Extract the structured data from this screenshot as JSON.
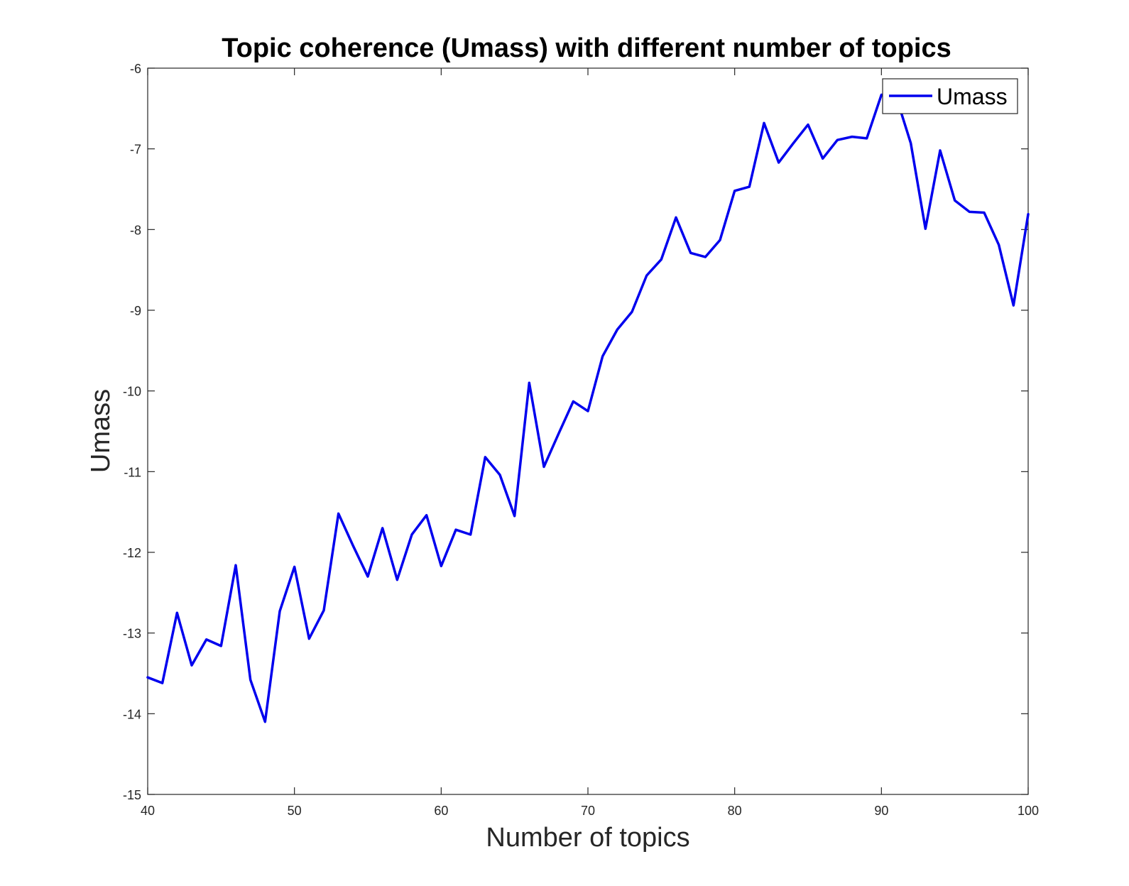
{
  "chart_data": {
    "type": "line",
    "title": "Topic coherence (Umass) with different number of topics",
    "xlabel": "Number of topics",
    "ylabel": "Umass",
    "xlim": [
      40,
      100
    ],
    "ylim": [
      -15,
      -6
    ],
    "xticks": [
      40,
      50,
      60,
      70,
      80,
      90,
      100
    ],
    "yticks": [
      -6,
      -7,
      -8,
      -9,
      -10,
      -11,
      -12,
      -13,
      -14,
      -15
    ],
    "grid": false,
    "legend": {
      "position": "top-right"
    },
    "series": [
      {
        "name": "Umass",
        "color": "#0000ee",
        "x": [
          40,
          41,
          42,
          43,
          44,
          45,
          46,
          47,
          48,
          49,
          50,
          51,
          52,
          53,
          54,
          55,
          56,
          57,
          58,
          59,
          60,
          61,
          62,
          63,
          64,
          65,
          66,
          67,
          68,
          69,
          70,
          71,
          72,
          73,
          74,
          75,
          76,
          77,
          78,
          79,
          80,
          81,
          82,
          83,
          84,
          85,
          86,
          87,
          88,
          89,
          90,
          91,
          92,
          93,
          94,
          95,
          96,
          97,
          98,
          99,
          100
        ],
        "y": [
          -13.55,
          -13.62,
          -12.75,
          -13.4,
          -13.08,
          -13.16,
          -12.16,
          -13.58,
          -14.1,
          -12.73,
          -12.18,
          -13.07,
          -12.72,
          -11.52,
          -11.92,
          -12.3,
          -11.7,
          -12.34,
          -11.78,
          -11.54,
          -12.17,
          -11.72,
          -11.78,
          -10.82,
          -11.04,
          -11.55,
          -9.9,
          -10.94,
          -10.53,
          -10.13,
          -10.25,
          -9.57,
          -9.24,
          -9.02,
          -8.57,
          -8.37,
          -7.85,
          -8.29,
          -8.34,
          -8.13,
          -7.52,
          -7.47,
          -6.68,
          -7.17,
          -6.93,
          -6.7,
          -7.12,
          -6.89,
          -6.85,
          -6.87,
          -6.33,
          -6.35,
          -6.93,
          -7.99,
          -7.02,
          -7.64,
          -7.78,
          -7.79,
          -8.19,
          -8.94,
          -7.81
        ]
      }
    ]
  }
}
